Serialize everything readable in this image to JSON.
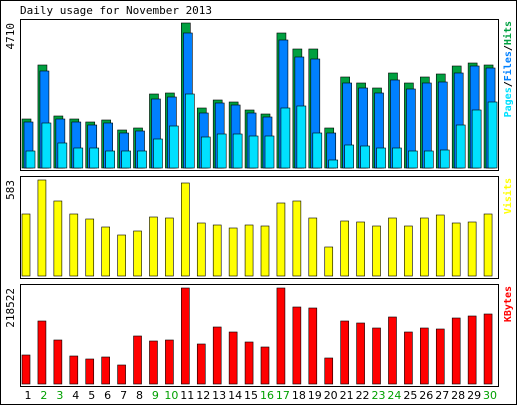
{
  "chart_data": {
    "title": "Daily usage for November 2013",
    "type": "bar",
    "x": [
      "1",
      "2",
      "3",
      "4",
      "5",
      "6",
      "7",
      "8",
      "9",
      "10",
      "11",
      "12",
      "13",
      "14",
      "15",
      "16",
      "17",
      "18",
      "19",
      "20",
      "21",
      "22",
      "23",
      "24",
      "25",
      "26",
      "27",
      "28",
      "29",
      "30"
    ],
    "weekend_days": [
      "2",
      "3",
      "9",
      "10",
      "16",
      "17",
      "23",
      "24",
      "30"
    ],
    "colors": {
      "background": "#ffffff",
      "frame": "#000000",
      "hits": "#00a040",
      "files": "#0080ff",
      "pages": "#00e0ff",
      "visits": "#ffff00",
      "kbytes": "#ff0000",
      "weekday_label": "#000000",
      "weekend_label": "#00a000"
    },
    "panels": [
      {
        "id": "top",
        "max_label": "4710",
        "ymax": 4710,
        "legend": [
          {
            "text": "Pages",
            "color": "#00e0ff"
          },
          {
            "text": "/",
            "color": "#000000"
          },
          {
            "text": "Files",
            "color": "#0080ff"
          },
          {
            "text": "/",
            "color": "#000000"
          },
          {
            "text": "Hits",
            "color": "#00a040"
          }
        ],
        "series": [
          {
            "name": "Hits",
            "color": "#00a040",
            "values": [
              1600,
              3350,
              1700,
              1600,
              1500,
              1550,
              1250,
              1300,
              2400,
              2450,
              4710,
              1950,
              2200,
              2150,
              1900,
              1750,
              4400,
              3850,
              3850,
              1300,
              2950,
              2750,
              2600,
              3100,
              2750,
              2950,
              3050,
              3300,
              3400,
              3350
            ]
          },
          {
            "name": "Files",
            "color": "#0080ff",
            "values": [
              1500,
              3150,
              1600,
              1500,
              1400,
              1450,
              1150,
              1200,
              2250,
              2300,
              4400,
              1800,
              2100,
              2050,
              1800,
              1650,
              4150,
              3600,
              3550,
              1150,
              2750,
              2600,
              2450,
              2850,
              2550,
              2750,
              2800,
              3100,
              3300,
              3250
            ]
          },
          {
            "name": "Pages",
            "color": "#00e0ff",
            "values": [
              550,
              1450,
              800,
              650,
              650,
              550,
              550,
              550,
              950,
              1350,
              2400,
              1000,
              1100,
              1100,
              1050,
              1050,
              1950,
              2000,
              1150,
              250,
              750,
              700,
              650,
              650,
              550,
              550,
              600,
              1400,
              1900,
              2150
            ]
          }
        ]
      },
      {
        "id": "middle",
        "max_label": "583",
        "ymax": 583,
        "legend": [
          {
            "text": "Visits",
            "color": "#ffff00"
          }
        ],
        "series": [
          {
            "name": "Visits",
            "color": "#ffff00",
            "values": [
              375,
              583,
              457,
              375,
              344,
              298,
              250,
              275,
              359,
              350,
              563,
              324,
              307,
              293,
              311,
              305,
              446,
              454,
              351,
              175,
              333,
              329,
              305,
              351,
              301,
              350,
              368,
              324,
              328,
              375
            ]
          }
        ]
      },
      {
        "id": "bottom",
        "max_label": "218522",
        "ymax": 218522,
        "legend": [
          {
            "text": "KBytes",
            "color": "#ff0000"
          }
        ],
        "series": [
          {
            "name": "KBytes",
            "color": "#ff0000",
            "values": [
              65000,
              143000,
              100000,
              63000,
              58000,
              62000,
              44000,
              110000,
              99000,
              100000,
              218522,
              90000,
              129000,
              119000,
              95000,
              84000,
              218522,
              175000,
              174000,
              59000,
              143000,
              138000,
              128000,
              152000,
              118000,
              128000,
              126000,
              151000,
              154000,
              160000
            ]
          }
        ]
      }
    ]
  }
}
